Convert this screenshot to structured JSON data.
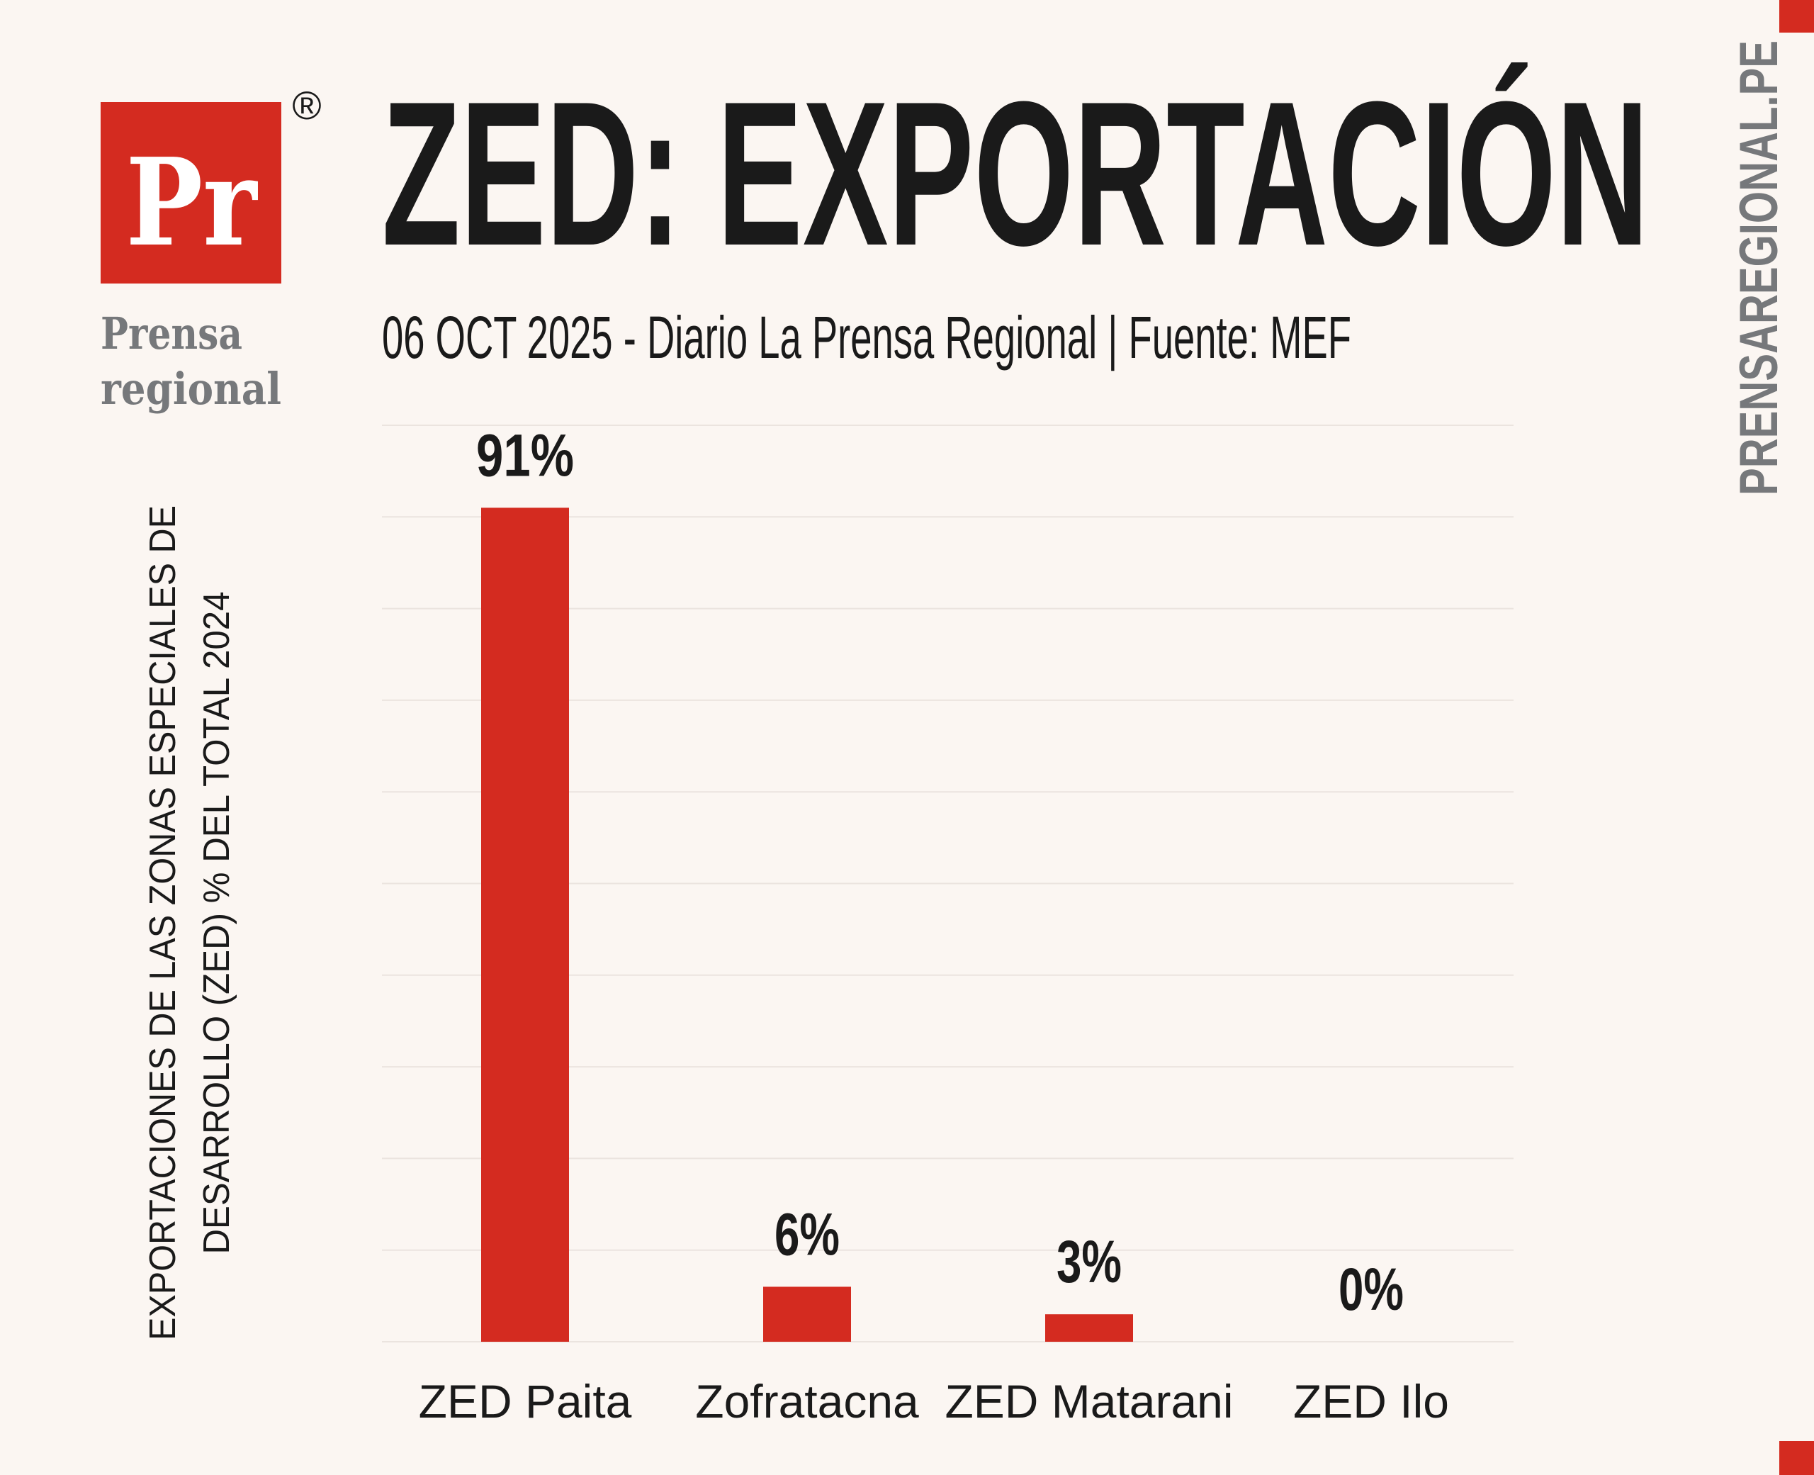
{
  "brand": {
    "logo_mark": "Pr",
    "logo_line1": "Prensa",
    "logo_line2": "regional",
    "registered": "®",
    "side_url": "PRENSAREGIONAL.PE",
    "accent_color": "#d42b20",
    "gray_color": "#76787b"
  },
  "header": {
    "title": "ZED: EXPORTACIÓN",
    "subtitle": "06 OCT 2025 - Diario La Prensa Regional | Fuente: MEF"
  },
  "chart_data": {
    "type": "bar",
    "title": "ZED: EXPORTACIÓN",
    "categories": [
      "ZED Paita",
      "Zofratacna",
      "ZED Matarani",
      "ZED Ilo"
    ],
    "values": [
      91,
      6,
      3,
      0
    ],
    "value_labels": [
      "91%",
      "6%",
      "3%",
      "0%"
    ],
    "ylabel_line1": "EXPORTACIONES DE LAS ZONAS ESPECIALES DE",
    "ylabel_line2": "DESARROLLO (ZED)  % DEL TOTAL 2024",
    "xlabel": "",
    "ylim": [
      0,
      100
    ],
    "grid_step": 10,
    "grid": true,
    "bar_color": "#d42b20"
  }
}
